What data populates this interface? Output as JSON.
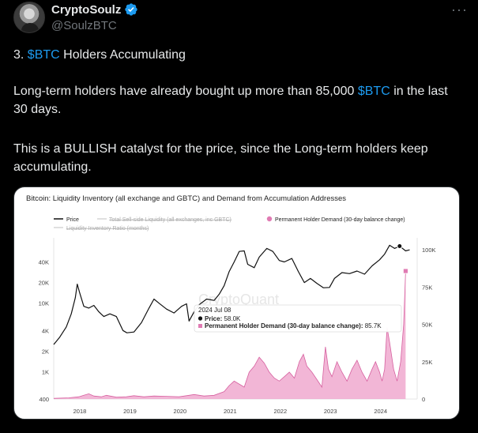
{
  "author": {
    "display_name": "CryptoSoulz",
    "handle": "@SoulzBTC"
  },
  "more_label": "···",
  "tweet": {
    "line1": {
      "prefix": "3. ",
      "cashtag": "$BTC",
      "suffix": " Holders Accumulating"
    },
    "line2": {
      "prefix": "Long-term holders have already bought up more than 85,000 ",
      "cashtag": "$BTC",
      "suffix": " in the last 30 days."
    },
    "line3": "This is a BULLISH catalyst for the price, since the Long-term holders keep accumulating."
  },
  "colors": {
    "verified": "#1d9bf0",
    "cashtag": "#1d9bf0",
    "price_line": "#111111",
    "demand_fill": "#f0a9cf",
    "demand_line": "#d6609f",
    "demand_marker": "#e07bb3"
  },
  "chart_data": {
    "type": "line",
    "title": "Bitcoin: Liquidity Inventory (all exchange and GBTC) and Demand from Accumulation Addresses",
    "legend": {
      "placement": "top-left",
      "items": [
        {
          "label": "Price",
          "style": "line",
          "active": true
        },
        {
          "label": "Total Sell-side Liquidity (all exchanges, inc GBTC)",
          "style": "line",
          "active": false
        },
        {
          "label": "Permanent Holder Demand (30-day balance change)",
          "style": "dot",
          "active": true
        },
        {
          "label": "Liquidity Inventory Ratio (months)",
          "style": "line",
          "active": false
        }
      ]
    },
    "watermark": "CryptoQuant",
    "x_ticks": [
      "2018",
      "2019",
      "2020",
      "2021",
      "2022",
      "2023",
      "2024"
    ],
    "x_range": [
      2017.5,
      2024.75
    ],
    "y_left": {
      "scale": "log",
      "ticks": [
        "400",
        "1K",
        "2K",
        "4K",
        "10K",
        "20K",
        "40K"
      ],
      "range": [
        400,
        100000
      ]
    },
    "y_right": {
      "scale": "linear",
      "ticks": [
        "0",
        "25K",
        "50K",
        "75K",
        "100K"
      ],
      "range": [
        0,
        100000
      ]
    },
    "series": [
      {
        "name": "Price",
        "axis": "left",
        "points": [
          [
            2017.5,
            2500
          ],
          [
            2017.62,
            3200
          ],
          [
            2017.75,
            4500
          ],
          [
            2017.85,
            7000
          ],
          [
            2017.93,
            12000
          ],
          [
            2017.97,
            19000
          ],
          [
            2018.02,
            14000
          ],
          [
            2018.1,
            9000
          ],
          [
            2018.2,
            8500
          ],
          [
            2018.3,
            9300
          ],
          [
            2018.4,
            7500
          ],
          [
            2018.5,
            6400
          ],
          [
            2018.62,
            7000
          ],
          [
            2018.75,
            6400
          ],
          [
            2018.88,
            4000
          ],
          [
            2018.96,
            3700
          ],
          [
            2019.1,
            3800
          ],
          [
            2019.25,
            5200
          ],
          [
            2019.4,
            8500
          ],
          [
            2019.5,
            11500
          ],
          [
            2019.6,
            10000
          ],
          [
            2019.75,
            8200
          ],
          [
            2019.9,
            7200
          ],
          [
            2020.05,
            9000
          ],
          [
            2020.15,
            9800
          ],
          [
            2020.2,
            5500
          ],
          [
            2020.3,
            7500
          ],
          [
            2020.4,
            9500
          ],
          [
            2020.55,
            11500
          ],
          [
            2020.7,
            11000
          ],
          [
            2020.8,
            13500
          ],
          [
            2020.9,
            18000
          ],
          [
            2021.0,
            29000
          ],
          [
            2021.1,
            40000
          ],
          [
            2021.2,
            57000
          ],
          [
            2021.3,
            58000
          ],
          [
            2021.37,
            37000
          ],
          [
            2021.5,
            33000
          ],
          [
            2021.6,
            47000
          ],
          [
            2021.75,
            63000
          ],
          [
            2021.87,
            57000
          ],
          [
            2022.0,
            42000
          ],
          [
            2022.1,
            40000
          ],
          [
            2022.25,
            45000
          ],
          [
            2022.38,
            29000
          ],
          [
            2022.5,
            20000
          ],
          [
            2022.62,
            23000
          ],
          [
            2022.75,
            19500
          ],
          [
            2022.88,
            16800
          ],
          [
            2023.0,
            17000
          ],
          [
            2023.1,
            23000
          ],
          [
            2023.25,
            28000
          ],
          [
            2023.4,
            27000
          ],
          [
            2023.55,
            29500
          ],
          [
            2023.7,
            26500
          ],
          [
            2023.85,
            35000
          ],
          [
            2024.0,
            43000
          ],
          [
            2024.1,
            52000
          ],
          [
            2024.2,
            70000
          ],
          [
            2024.3,
            63000
          ],
          [
            2024.4,
            68000
          ],
          [
            2024.52,
            58000
          ],
          [
            2024.6,
            60000
          ]
        ]
      },
      {
        "name": "Permanent Holder Demand (30-day balance change)",
        "axis": "right",
        "points": [
          [
            2017.5,
            400
          ],
          [
            2017.8,
            800
          ],
          [
            2018.0,
            1500
          ],
          [
            2018.1,
            2500
          ],
          [
            2018.2,
            3500
          ],
          [
            2018.3,
            2000
          ],
          [
            2018.45,
            1500
          ],
          [
            2018.55,
            2500
          ],
          [
            2018.75,
            1200
          ],
          [
            2018.95,
            1500
          ],
          [
            2019.1,
            2200
          ],
          [
            2019.3,
            1500
          ],
          [
            2019.5,
            2000
          ],
          [
            2019.75,
            1800
          ],
          [
            2020.0,
            1500
          ],
          [
            2020.2,
            2500
          ],
          [
            2020.3,
            3000
          ],
          [
            2020.5,
            2000
          ],
          [
            2020.7,
            2500
          ],
          [
            2020.9,
            5000
          ],
          [
            2021.0,
            9000
          ],
          [
            2021.1,
            12000
          ],
          [
            2021.2,
            10000
          ],
          [
            2021.3,
            8000
          ],
          [
            2021.4,
            18000
          ],
          [
            2021.5,
            22000
          ],
          [
            2021.6,
            28000
          ],
          [
            2021.7,
            24000
          ],
          [
            2021.8,
            18000
          ],
          [
            2021.9,
            14000
          ],
          [
            2022.0,
            12000
          ],
          [
            2022.1,
            15000
          ],
          [
            2022.2,
            18000
          ],
          [
            2022.3,
            14000
          ],
          [
            2022.4,
            25000
          ],
          [
            2022.48,
            30000
          ],
          [
            2022.55,
            22000
          ],
          [
            2022.65,
            18000
          ],
          [
            2022.75,
            13000
          ],
          [
            2022.85,
            8000
          ],
          [
            2022.92,
            35000
          ],
          [
            2022.98,
            20000
          ],
          [
            2023.05,
            15000
          ],
          [
            2023.15,
            25000
          ],
          [
            2023.25,
            18000
          ],
          [
            2023.35,
            12000
          ],
          [
            2023.45,
            20000
          ],
          [
            2023.55,
            26000
          ],
          [
            2023.65,
            18000
          ],
          [
            2023.75,
            12000
          ],
          [
            2023.85,
            20000
          ],
          [
            2023.92,
            25000
          ],
          [
            2024.0,
            18000
          ],
          [
            2024.05,
            12000
          ],
          [
            2024.1,
            20000
          ],
          [
            2024.15,
            48000
          ],
          [
            2024.2,
            38000
          ],
          [
            2024.28,
            20000
          ],
          [
            2024.35,
            12000
          ],
          [
            2024.42,
            25000
          ],
          [
            2024.48,
            50000
          ],
          [
            2024.52,
            85700
          ]
        ]
      }
    ],
    "tooltip": {
      "date": "2024 Jul 08",
      "price_label": "Price:",
      "price_value": "58.0K",
      "demand_label": "Permanent Holder Demand (30-day balance change):",
      "demand_value": "85.7K"
    }
  }
}
